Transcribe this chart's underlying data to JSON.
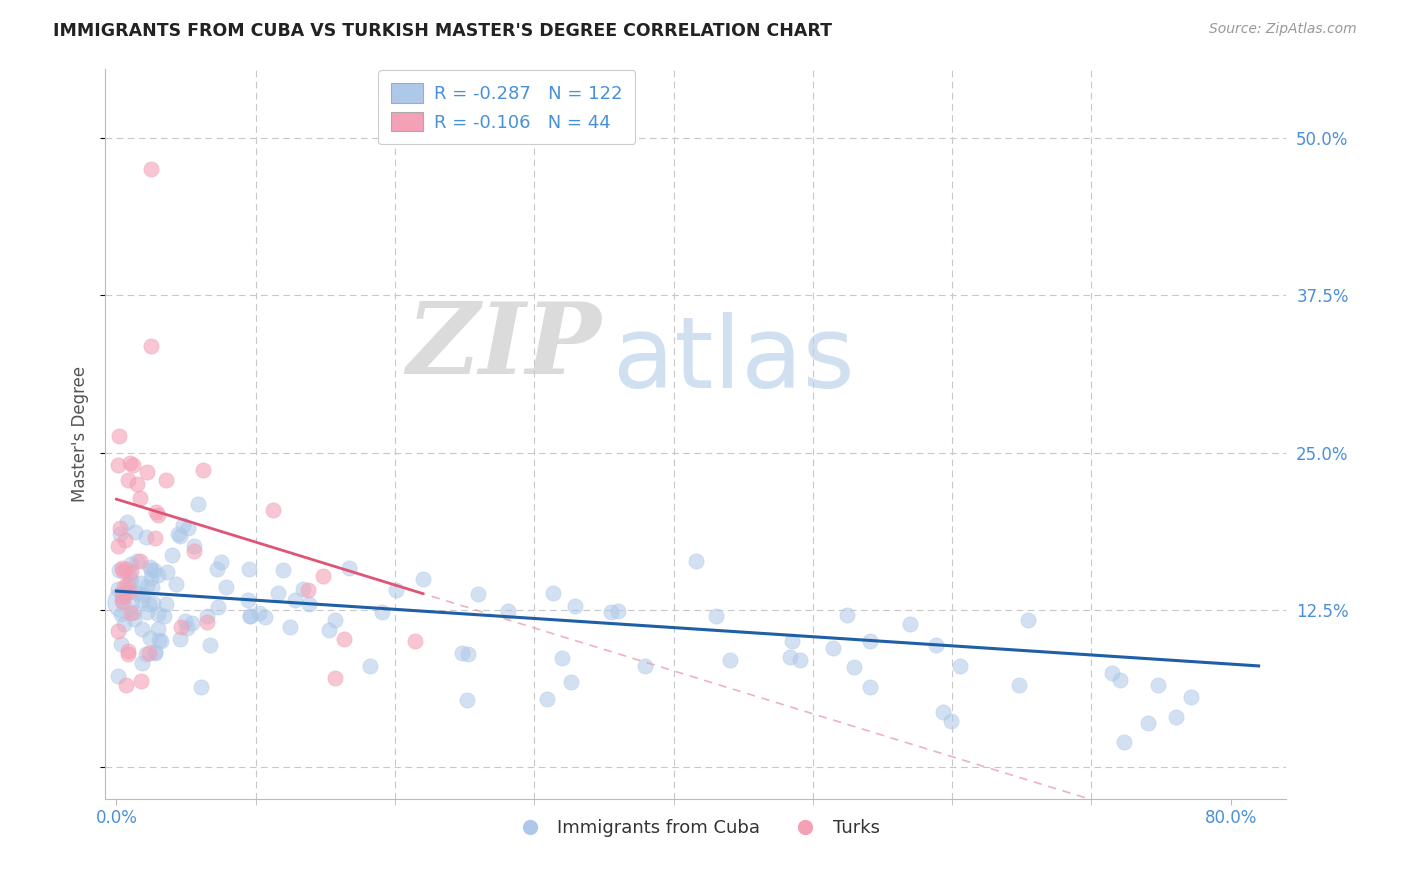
{
  "title": "IMMIGRANTS FROM CUBA VS TURKISH MASTER'S DEGREE CORRELATION CHART",
  "source": "Source: ZipAtlas.com",
  "ylabel_label": "Master's Degree",
  "legend_label1": "Immigrants from Cuba",
  "legend_label2": "Turks",
  "r1": "-0.287",
  "n1": "122",
  "r2": "-0.106",
  "n2": "44",
  "xlim": [
    -0.008,
    0.84
  ],
  "ylim": [
    -0.025,
    0.555
  ],
  "watermark_zip": "ZIP",
  "watermark_atlas": "atlas",
  "color_blue": "#adc8e8",
  "color_pink": "#f4a0b5",
  "trend_blue": "#1f5fa6",
  "trend_pink": "#e05575",
  "trend_pink_dash": "#e8a0b0",
  "background": "#ffffff",
  "grid_color": "#c8c8c8",
  "tick_color": "#4a90d9",
  "title_color": "#222222",
  "source_color": "#999999",
  "ylabel_color": "#555555"
}
